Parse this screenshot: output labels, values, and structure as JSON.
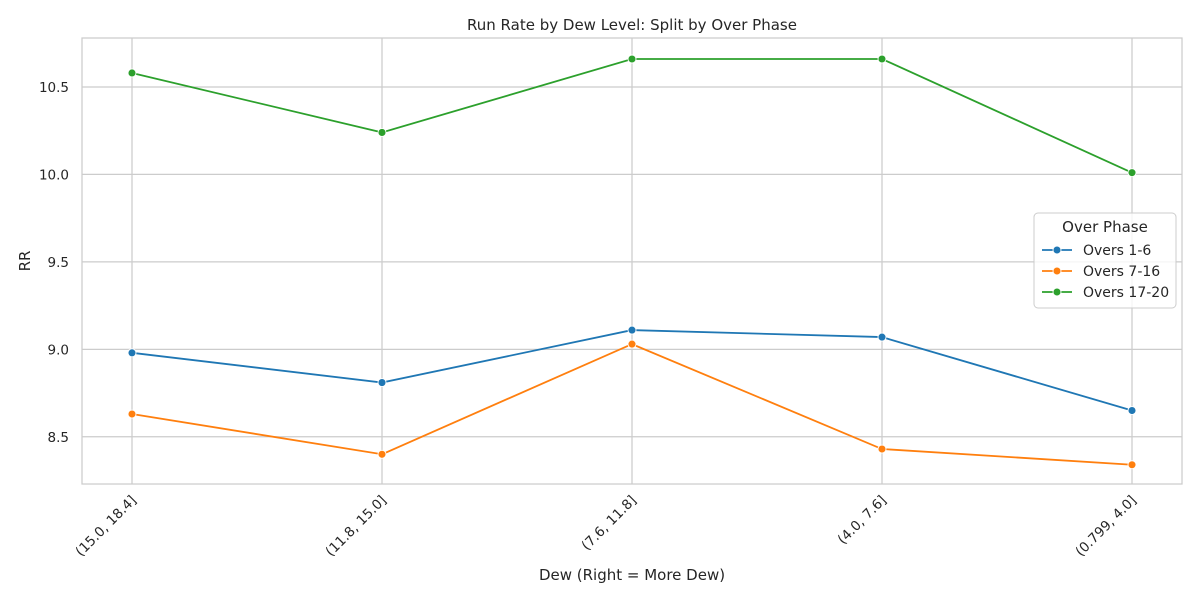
{
  "chart_data": {
    "type": "line",
    "title": "Run Rate by Dew Level: Split by Over Phase",
    "xlabel": "Dew (Right = More Dew)",
    "ylabel": "RR",
    "categories": [
      "(15.0, 18.4]",
      "(11.8, 15.0]",
      "(7.6, 11.8]",
      "(4.0, 7.6]",
      "(0.799, 4.0]"
    ],
    "ylim": [
      8.23,
      10.78
    ],
    "yticks": [
      8.5,
      9.0,
      9.5,
      10.0,
      10.5
    ],
    "ytick_labels": [
      "8.5",
      "9.0",
      "9.5",
      "10.0",
      "10.5"
    ],
    "grid": true,
    "legend": {
      "title": "Over Phase",
      "position": "right"
    },
    "series": [
      {
        "name": "Overs 1-6",
        "color": "#1f77b4",
        "values": [
          8.98,
          8.81,
          9.11,
          9.07,
          8.65
        ]
      },
      {
        "name": "Overs 7-16",
        "color": "#ff7f0e",
        "values": [
          8.63,
          8.4,
          9.03,
          8.43,
          8.34
        ]
      },
      {
        "name": "Overs 17-20",
        "color": "#2ca02c",
        "values": [
          10.58,
          10.24,
          10.66,
          10.66,
          10.01
        ]
      }
    ]
  }
}
